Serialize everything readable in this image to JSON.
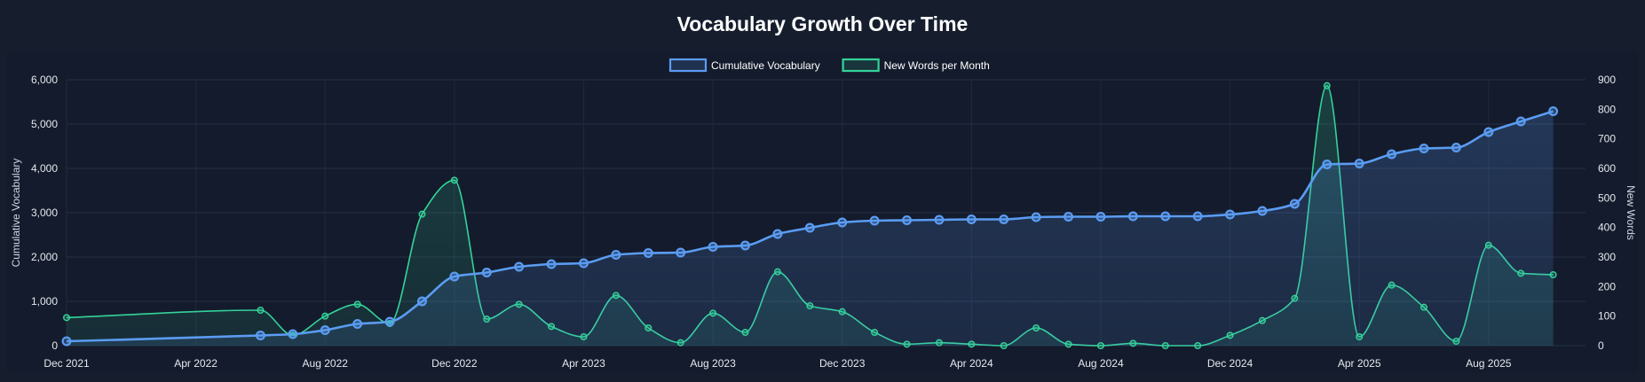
{
  "chart_data": {
    "type": "line",
    "title": "Vocabulary Growth Over Time",
    "legend": {
      "placement": "top-center",
      "items": [
        "Cumulative Vocabulary",
        "New Words per Month"
      ]
    },
    "x_ticks": [
      "Dec 2021",
      "Apr 2022",
      "Aug 2022",
      "Dec 2022",
      "Apr 2023",
      "Aug 2023",
      "Dec 2023",
      "Apr 2024",
      "Aug 2024",
      "Dec 2024",
      "Apr 2025",
      "Aug 2025"
    ],
    "x_range": [
      "2021-12",
      "2025-11"
    ],
    "y_left": {
      "label": "Cumulative Vocabulary",
      "ylim": [
        0,
        6000
      ],
      "ticks": [
        "0",
        "1,000",
        "2,000",
        "3,000",
        "4,000",
        "5,000",
        "6,000"
      ]
    },
    "y_right": {
      "label": "New Words",
      "ylim": [
        0,
        900
      ],
      "ticks": [
        "0",
        "100",
        "200",
        "300",
        "400",
        "500",
        "600",
        "700",
        "800",
        "900"
      ]
    },
    "grid": true,
    "series": [
      {
        "name": "Cumulative Vocabulary",
        "axis": "left",
        "color": "#5b9cf2",
        "points": [
          [
            "2021-12",
            100
          ],
          [
            "2022-06",
            230
          ],
          [
            "2022-07",
            260
          ],
          [
            "2022-08",
            350
          ],
          [
            "2022-09",
            490
          ],
          [
            "2022-10",
            540
          ],
          [
            "2022-11",
            1000
          ],
          [
            "2022-12",
            1560
          ],
          [
            "2023-01",
            1650
          ],
          [
            "2023-02",
            1780
          ],
          [
            "2023-03",
            1840
          ],
          [
            "2023-04",
            1860
          ],
          [
            "2023-05",
            2050
          ],
          [
            "2023-06",
            2090
          ],
          [
            "2023-07",
            2100
          ],
          [
            "2023-08",
            2230
          ],
          [
            "2023-09",
            2260
          ],
          [
            "2023-10",
            2520
          ],
          [
            "2023-11",
            2660
          ],
          [
            "2023-12",
            2780
          ],
          [
            "2024-01",
            2820
          ],
          [
            "2024-02",
            2830
          ],
          [
            "2024-03",
            2840
          ],
          [
            "2024-04",
            2850
          ],
          [
            "2024-05",
            2850
          ],
          [
            "2024-06",
            2900
          ],
          [
            "2024-07",
            2910
          ],
          [
            "2024-08",
            2910
          ],
          [
            "2024-09",
            2920
          ],
          [
            "2024-10",
            2920
          ],
          [
            "2024-11",
            2920
          ],
          [
            "2024-12",
            2960
          ],
          [
            "2025-01",
            3040
          ],
          [
            "2025-02",
            3200
          ],
          [
            "2025-03",
            4090
          ],
          [
            "2025-04",
            4110
          ],
          [
            "2025-05",
            4320
          ],
          [
            "2025-06",
            4450
          ],
          [
            "2025-07",
            4470
          ],
          [
            "2025-08",
            4820
          ],
          [
            "2025-09",
            5060
          ],
          [
            "2025-10",
            5290
          ]
        ]
      },
      {
        "name": "New Words per Month",
        "axis": "right",
        "color": "#34d399",
        "points": [
          [
            "2021-12",
            95
          ],
          [
            "2022-06",
            120
          ],
          [
            "2022-07",
            35
          ],
          [
            "2022-08",
            100
          ],
          [
            "2022-09",
            140
          ],
          [
            "2022-10",
            75
          ],
          [
            "2022-11",
            445
          ],
          [
            "2022-12",
            560
          ],
          [
            "2023-01",
            90
          ],
          [
            "2023-02",
            140
          ],
          [
            "2023-03",
            65
          ],
          [
            "2023-04",
            30
          ],
          [
            "2023-05",
            170
          ],
          [
            "2023-06",
            60
          ],
          [
            "2023-07",
            10
          ],
          [
            "2023-08",
            110
          ],
          [
            "2023-09",
            45
          ],
          [
            "2023-10",
            250
          ],
          [
            "2023-11",
            135
          ],
          [
            "2023-12",
            115
          ],
          [
            "2024-01",
            45
          ],
          [
            "2024-02",
            5
          ],
          [
            "2024-03",
            10
          ],
          [
            "2024-04",
            5
          ],
          [
            "2024-05",
            0
          ],
          [
            "2024-06",
            60
          ],
          [
            "2024-07",
            5
          ],
          [
            "2024-08",
            0
          ],
          [
            "2024-09",
            8
          ],
          [
            "2024-10",
            0
          ],
          [
            "2024-11",
            0
          ],
          [
            "2024-12",
            35
          ],
          [
            "2025-01",
            85
          ],
          [
            "2025-02",
            160
          ],
          [
            "2025-03",
            880
          ],
          [
            "2025-04",
            30
          ],
          [
            "2025-05",
            205
          ],
          [
            "2025-06",
            130
          ],
          [
            "2025-07",
            15
          ],
          [
            "2025-08",
            340
          ],
          [
            "2025-09",
            245
          ],
          [
            "2025-10",
            240
          ]
        ]
      }
    ]
  }
}
